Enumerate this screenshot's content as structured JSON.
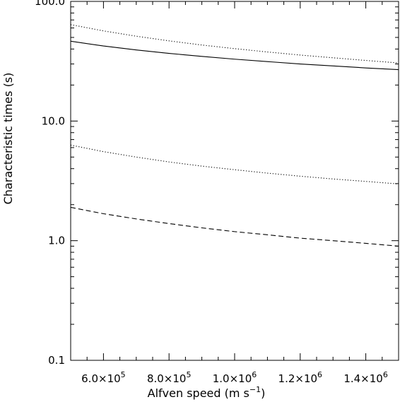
{
  "chart_data": {
    "type": "line",
    "title": "",
    "xlabel": "Alfven speed (m s",
    "xlabel_sup": "−1",
    "xlabel_close": ")",
    "ylabel": "Characteristic times (s)",
    "xlim": [
      500000,
      1500000
    ],
    "ylim": [
      0.1,
      100.0
    ],
    "yscale": "log",
    "grid": false,
    "x_ticks": [
      {
        "value": 600000,
        "mantissa": "6.0×10",
        "exp": "5"
      },
      {
        "value": 800000,
        "mantissa": "8.0×10",
        "exp": "5"
      },
      {
        "value": 1000000,
        "mantissa": "1.0×10",
        "exp": "6"
      },
      {
        "value": 1200000,
        "mantissa": "1.2×10",
        "exp": "6"
      },
      {
        "value": 1400000,
        "mantissa": "1.4×10",
        "exp": "6"
      }
    ],
    "y_ticks": [
      {
        "value": 0.1,
        "label": "0.1"
      },
      {
        "value": 1.0,
        "label": "1.0"
      },
      {
        "value": 10.0,
        "label": "10.0"
      },
      {
        "value": 100.0,
        "label": "100.0"
      }
    ],
    "x": [
      500000,
      600000,
      700000,
      800000,
      900000,
      1000000,
      1100000,
      1200000,
      1300000,
      1400000,
      1500000
    ],
    "series": [
      {
        "style": "solid",
        "color": "#000000",
        "values": [
          46.5,
          42.4,
          39.3,
          36.8,
          34.7,
          32.9,
          31.4,
          30.0,
          28.9,
          27.8,
          26.9
        ]
      },
      {
        "style": "dotted",
        "color": "#000000",
        "values": [
          64.0,
          56.7,
          51.2,
          46.8,
          43.2,
          40.3,
          37.8,
          35.6,
          33.8,
          32.1,
          30.6
        ]
      },
      {
        "style": "dotted",
        "color": "#000000",
        "values": [
          6.3,
          5.55,
          5.0,
          4.55,
          4.2,
          3.92,
          3.67,
          3.46,
          3.28,
          3.13,
          2.98
        ]
      },
      {
        "style": "dashed",
        "color": "#000000",
        "values": [
          1.9,
          1.68,
          1.52,
          1.39,
          1.28,
          1.19,
          1.12,
          1.05,
          1.0,
          0.95,
          0.9
        ]
      }
    ]
  }
}
